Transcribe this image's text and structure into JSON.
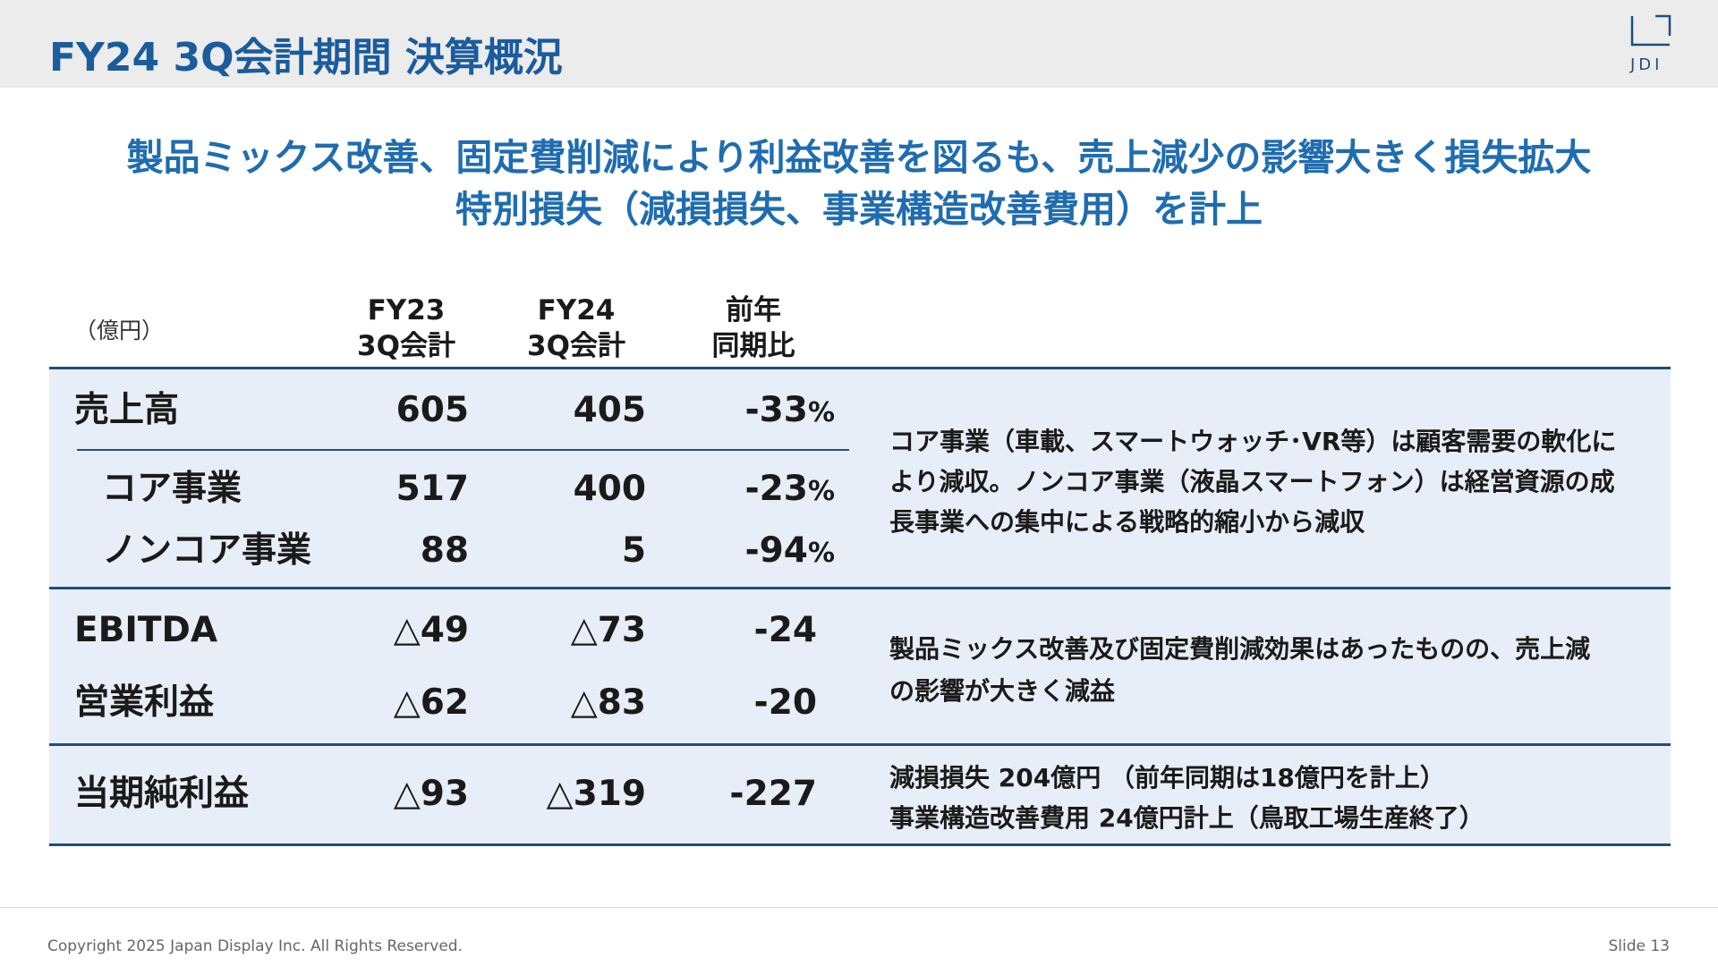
{
  "header": {
    "title": "FY24 3Q会計期間 決算概況",
    "logo": "JDI"
  },
  "subtitle": [
    "製品ミックス改善、固定費削減により利益改善を図るも、売上減少の影響大きく損失拡大",
    "特別損失（減損損失、事業構造改善費用）を計上"
  ],
  "table": {
    "unit": "（億円）",
    "columns": [
      [
        "FY23",
        "3Q会計"
      ],
      [
        "FY24",
        "3Q会計"
      ],
      [
        "前年",
        "同期比"
      ]
    ],
    "rows": [
      {
        "label": "売上高",
        "fy23": "605",
        "fy24": "405",
        "yoy": "-33",
        "yoy_unit": "%"
      },
      {
        "label": "コア事業",
        "fy23": "517",
        "fy24": "400",
        "yoy": "-23",
        "yoy_unit": "%"
      },
      {
        "label": "ノンコア事業",
        "fy23": "88",
        "fy24": "5",
        "yoy": "-94",
        "yoy_unit": "%"
      },
      {
        "label": "EBITDA",
        "fy23": "△49",
        "fy24": "△73",
        "yoy": "-24"
      },
      {
        "label": "営業利益",
        "fy23": "△62",
        "fy24": "△83",
        "yoy": "-20"
      },
      {
        "label": "当期純利益",
        "fy23": "△93",
        "fy24": "△319",
        "yoy": "-227"
      }
    ],
    "comments": [
      [
        "コア事業（車載、スマートウォッチ･VR等）は顧客需要の軟化に",
        "より減収。ノンコア事業（液晶スマートフォン）は経営資源の成",
        "長事業への集中による戦略的縮小から減収"
      ],
      [
        "製品ミックス改善及び固定費削減効果はあったものの、売上減",
        "の影響が大きく減益"
      ],
      [
        "減損損失 204億円 （前年同期は18億円を計上）",
        "事業構造改善費用 24億円計上（鳥取工場生産終了）"
      ]
    ]
  },
  "footer": {
    "copyright": "Copyright 2025 Japan Display Inc. All Rights Reserved.",
    "slide": "Slide 13"
  }
}
